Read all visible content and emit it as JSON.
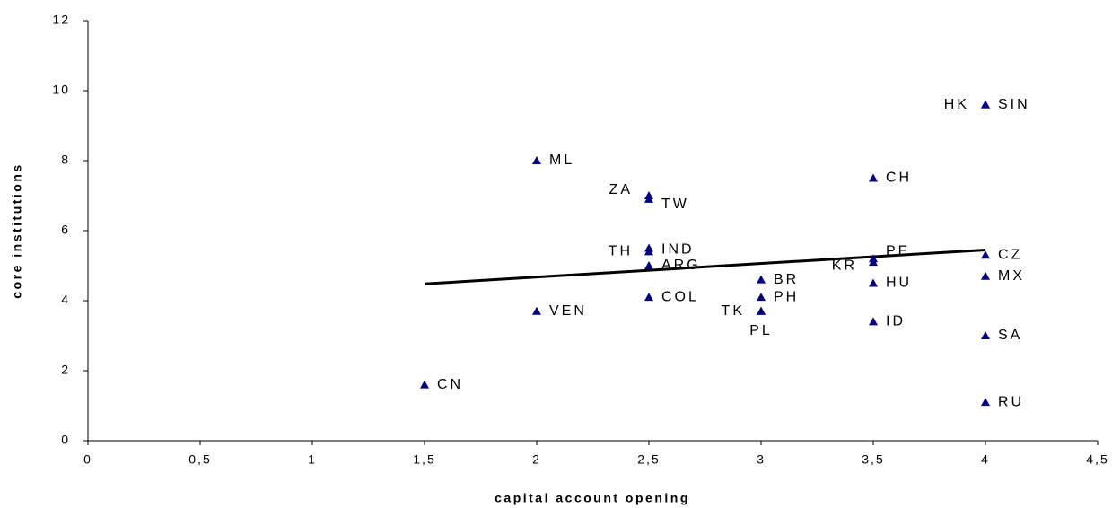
{
  "chart_data": {
    "type": "scatter",
    "xlabel": "capital account opening",
    "ylabel": "core institutions",
    "xlim": [
      0,
      4.5
    ],
    "ylim": [
      0,
      12
    ],
    "xticks": [
      0,
      {
        "value": 0.5,
        "label": "0,5"
      },
      1,
      {
        "value": 1.5,
        "label": "1,5"
      },
      2,
      {
        "value": 2.5,
        "label": "2,5"
      },
      3,
      {
        "value": 3.5,
        "label": "3,5"
      },
      4,
      {
        "value": 4.5,
        "label": "4,5"
      }
    ],
    "yticks": [
      0,
      2,
      4,
      6,
      8,
      10,
      12
    ],
    "color": "#000080",
    "labels": [
      "CN",
      "VEN",
      "ML",
      "ZA",
      "TW",
      "TH",
      "IND",
      "ARG",
      "COL",
      "BR",
      "PH",
      "TK",
      "PL",
      "CH",
      "KR",
      "PE",
      "HU",
      "ID",
      "HK",
      "SIN",
      "CZ",
      "MX",
      "SA",
      "RU"
    ],
    "x": [
      1.5,
      2,
      2,
      2.5,
      2.5,
      2.5,
      2.5,
      2.5,
      2.5,
      3,
      3,
      3,
      3,
      3.5,
      3.5,
      3.5,
      3.5,
      3.5,
      4,
      4,
      4,
      4,
      4,
      4
    ],
    "values": [
      1.6,
      3.7,
      8.0,
      7.0,
      6.9,
      5.5,
      5.4,
      5.0,
      4.1,
      4.6,
      4.1,
      3.7,
      3.7,
      7.5,
      5.1,
      5.2,
      4.5,
      3.4,
      9.6,
      9.6,
      5.3,
      4.7,
      3.0,
      1.1
    ],
    "trendline": {
      "x": [
        1.5,
        4
      ],
      "y": [
        4.48,
        5.45
      ],
      "color": "#000000"
    }
  }
}
